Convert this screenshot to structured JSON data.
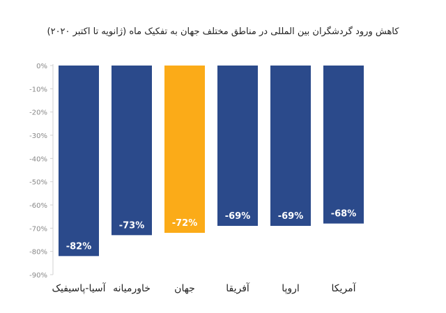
{
  "chart_data": {
    "type": "bar",
    "title": "کاهش ورود گردشگران بین المللی در مناطق مختلف جهان به تفکیک ماه (ژانویه تا اکتبر ۲۰۲۰)",
    "categories": [
      "آسیا-پاسیفیک",
      "خاورمیانه",
      "جهان",
      "آفریقا",
      "اروپا",
      "آمریکا"
    ],
    "values": [
      -82,
      -73,
      -72,
      -69,
      -69,
      -68
    ],
    "data_labels": [
      "-82%",
      "-73%",
      "-72%",
      "-69%",
      "-69%",
      "-68%"
    ],
    "y_ticks": [
      "0%",
      "-10%",
      "-20%",
      "-30%",
      "-40%",
      "-50%",
      "-60%",
      "-70%",
      "-80%",
      "-90%"
    ],
    "ylim": [
      -90,
      0
    ],
    "xlabel": "",
    "ylabel": "",
    "grid": false,
    "colors": {
      "default": "#2b4a8b",
      "highlight": "#fbab18",
      "highlight_category": "جهان",
      "axis": "#d0d0d0",
      "tick_text": "#888888",
      "label_text": "#ffffff",
      "category_text": "#222222"
    }
  }
}
